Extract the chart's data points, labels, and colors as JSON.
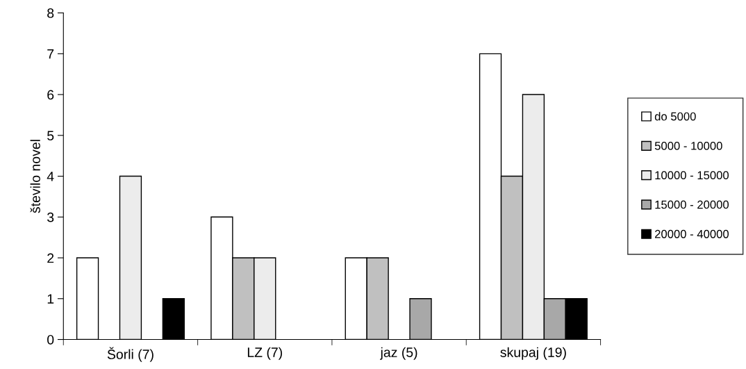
{
  "chart_data": {
    "type": "bar",
    "ylabel": "število novel",
    "categories": [
      "Šorli (7)",
      "LZ (7)",
      "jaz (5)",
      "skupaj (19)"
    ],
    "series": [
      {
        "name": "do 5000",
        "color": "#ffffff",
        "values": [
          2,
          3,
          2,
          7
        ]
      },
      {
        "name": "5000 - 10000",
        "color": "#c0c0c0",
        "values": [
          null,
          2,
          2,
          4
        ]
      },
      {
        "name": "10000 - 15000",
        "color": "#ececec",
        "values": [
          4,
          2,
          null,
          6
        ]
      },
      {
        "name": "15000 - 20000",
        "color": "#a8a8a8",
        "values": [
          null,
          null,
          1,
          1
        ]
      },
      {
        "name": "20000 - 40000",
        "color": "#000000",
        "values": [
          1,
          null,
          null,
          1
        ]
      }
    ],
    "ylim": [
      0,
      8
    ],
    "yticks": [
      0,
      1,
      2,
      3,
      4,
      5,
      6,
      7,
      8
    ],
    "grid": false,
    "legend": "right"
  }
}
